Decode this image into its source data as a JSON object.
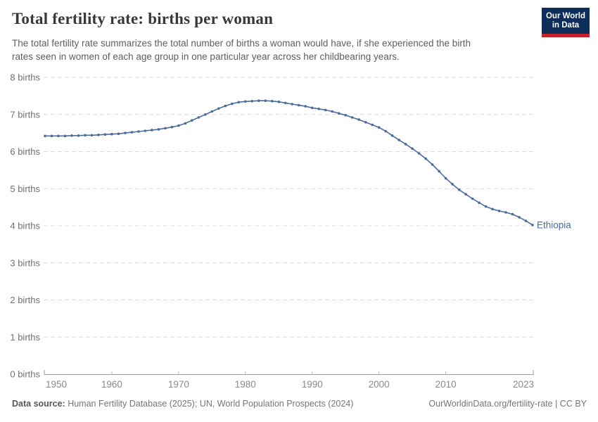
{
  "header": {
    "title": "Total fertility rate: births per woman",
    "subtitle_line1": "The total fertility rate summarizes the total number of births a woman would have, if she experienced the birth",
    "subtitle_line2": "rates seen in women of each age group in one particular year across her childbearing years.",
    "logo": {
      "line1": "Our World",
      "line2": "in Data"
    }
  },
  "chart_data": {
    "type": "line",
    "title": "Total fertility rate: births per woman",
    "xlabel": "",
    "ylabel": "",
    "xlim": [
      1950,
      2023
    ],
    "ylim": [
      0,
      8
    ],
    "grid": "dashed-horizontal",
    "legend_position": "end-of-line-label",
    "x_ticks": [
      1950,
      1960,
      1970,
      1980,
      1990,
      2000,
      2010,
      2023
    ],
    "y_ticks": [
      0,
      1,
      2,
      3,
      4,
      5,
      6,
      7,
      8
    ],
    "y_tick_label_suffix": " births",
    "series": [
      {
        "name": "Ethiopia",
        "color": "#4C6A9C",
        "years": [
          1950,
          1951,
          1952,
          1953,
          1954,
          1955,
          1956,
          1957,
          1958,
          1959,
          1960,
          1961,
          1962,
          1963,
          1964,
          1965,
          1966,
          1967,
          1968,
          1969,
          1970,
          1971,
          1972,
          1973,
          1974,
          1975,
          1976,
          1977,
          1978,
          1979,
          1980,
          1981,
          1982,
          1983,
          1984,
          1985,
          1986,
          1987,
          1988,
          1989,
          1990,
          1991,
          1992,
          1993,
          1994,
          1995,
          1996,
          1997,
          1998,
          1999,
          2000,
          2001,
          2002,
          2003,
          2004,
          2005,
          2006,
          2007,
          2008,
          2009,
          2010,
          2011,
          2012,
          2013,
          2014,
          2015,
          2016,
          2017,
          2018,
          2019,
          2020,
          2021,
          2022,
          2023
        ],
        "values": [
          6.42,
          6.42,
          6.42,
          6.42,
          6.43,
          6.43,
          6.44,
          6.44,
          6.45,
          6.46,
          6.47,
          6.48,
          6.5,
          6.52,
          6.54,
          6.56,
          6.58,
          6.6,
          6.63,
          6.66,
          6.7,
          6.76,
          6.84,
          6.92,
          7.0,
          7.08,
          7.16,
          7.23,
          7.29,
          7.33,
          7.35,
          7.36,
          7.37,
          7.37,
          7.36,
          7.34,
          7.31,
          7.28,
          7.25,
          7.22,
          7.18,
          7.15,
          7.12,
          7.08,
          7.03,
          6.98,
          6.92,
          6.86,
          6.79,
          6.72,
          6.65,
          6.55,
          6.43,
          6.31,
          6.2,
          6.08,
          5.95,
          5.81,
          5.65,
          5.47,
          5.28,
          5.12,
          4.97,
          4.85,
          4.73,
          4.62,
          4.52,
          4.45,
          4.4,
          4.36,
          4.31,
          4.23,
          4.13,
          4.02
        ]
      }
    ]
  },
  "footer": {
    "source_label": "Data source:",
    "source_text": " Human Fertility Database (2025); UN, World Population Prospects (2024)",
    "link_text": "OurWorldinData.org/fertility-rate | CC BY"
  },
  "colors": {
    "line": "#4C6A9C",
    "grid": "#dcdcdc",
    "axis": "#9a9a9a",
    "mid_tick": "#bbbbbb",
    "tick_text": "#6f6f6f",
    "x_tick_text": "#8a8a8a"
  }
}
